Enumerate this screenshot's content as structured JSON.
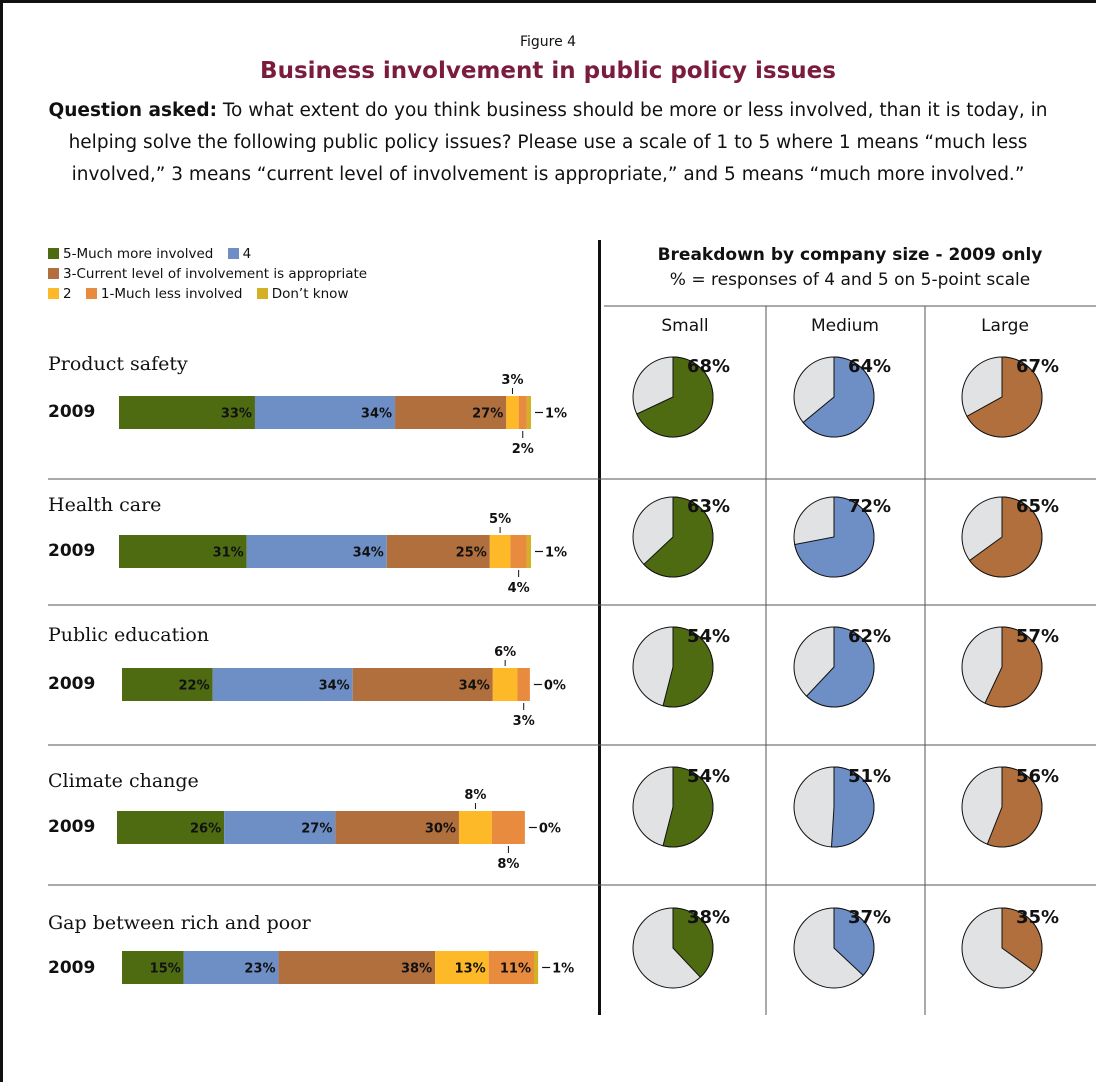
{
  "figure_label": "Figure 4",
  "title": "Business involvement in public policy issues",
  "question_bold": "Question asked:",
  "question_text": " To what extent do you think business should be more or less involved, than it is today, in helping solve the following public policy issues? Please use a scale of 1 to 5 where 1 means “much less involved,” 3 means “current level of involvement is appropriate,” and 5 means “much more involved.”",
  "legend": {
    "l5": "5-Much more involved",
    "l4": "4",
    "l3": "3-Current level of involvement is appropriate",
    "l2": "2",
    "l1": "1-Much less involved",
    "ldk": "Don’t know"
  },
  "colors": {
    "c5": "#4f6b12",
    "c4": "#6e8fc6",
    "c3": "#b06f3c",
    "c2": "#fdb927",
    "c1": "#e88b3e",
    "cdk": "#d4b124",
    "pie_rest": "#e1e2e4"
  },
  "breakdown": {
    "title": "Breakdown by company size - 2009 only",
    "subtitle": "% = responses of 4 and 5 on 5-point scale",
    "columns": [
      "Small",
      "Medium",
      "Large"
    ]
  },
  "chart_data": [
    {
      "type": "bar",
      "title": "",
      "orientation": "horizontal-stacked",
      "series_names": [
        "5-Much more involved",
        "4",
        "3-Current level of involvement is appropriate",
        "2",
        "1-Much less involved",
        "Don’t know"
      ],
      "categories": [
        "Product safety",
        "Health care",
        "Public education",
        "Climate change",
        "Gap between rich and poor"
      ],
      "year_label": "2009",
      "rows": [
        {
          "issue": "Product safety",
          "year": "2009",
          "values": [
            33,
            34,
            27,
            3,
            2,
            1
          ],
          "labels": [
            "33%",
            "34%",
            "27%",
            "3%",
            "2%",
            "1%"
          ]
        },
        {
          "issue": "Health care",
          "year": "2009",
          "values": [
            31,
            34,
            25,
            5,
            4,
            1
          ],
          "labels": [
            "31%",
            "34%",
            "25%",
            "5%",
            "4%",
            "1%"
          ]
        },
        {
          "issue": "Public education",
          "year": "2009",
          "values": [
            22,
            34,
            34,
            6,
            3,
            0
          ],
          "labels": [
            "22%",
            "34%",
            "34%",
            "6%",
            "3%",
            "0%"
          ]
        },
        {
          "issue": "Climate change",
          "year": "2009",
          "values": [
            26,
            27,
            30,
            8,
            8,
            0
          ],
          "labels": [
            "26%",
            "27%",
            "30%",
            "8%",
            "8%",
            "0%"
          ]
        },
        {
          "issue": "Gap between rich and poor",
          "year": "2009",
          "values": [
            15,
            23,
            38,
            13,
            11,
            1
          ],
          "labels": [
            "15%",
            "23%",
            "38%",
            "13%",
            "11%",
            "1%"
          ]
        }
      ]
    },
    {
      "type": "pie",
      "title": "Breakdown by company size - 2009 only",
      "columns": [
        "Small",
        "Medium",
        "Large"
      ],
      "rows": [
        {
          "issue": "Product safety",
          "values": [
            68,
            64,
            67
          ],
          "labels": [
            "68%",
            "64%",
            "67%"
          ]
        },
        {
          "issue": "Health care",
          "values": [
            63,
            72,
            65
          ],
          "labels": [
            "63%",
            "72%",
            "65%"
          ]
        },
        {
          "issue": "Public education",
          "values": [
            54,
            62,
            57
          ],
          "labels": [
            "54%",
            "62%",
            "57%"
          ]
        },
        {
          "issue": "Climate change",
          "values": [
            54,
            51,
            56
          ],
          "labels": [
            "54%",
            "51%",
            "56%"
          ]
        },
        {
          "issue": "Gap between rich and poor",
          "values": [
            38,
            37,
            35
          ],
          "labels": [
            "38%",
            "37%",
            "35%"
          ]
        }
      ]
    }
  ]
}
